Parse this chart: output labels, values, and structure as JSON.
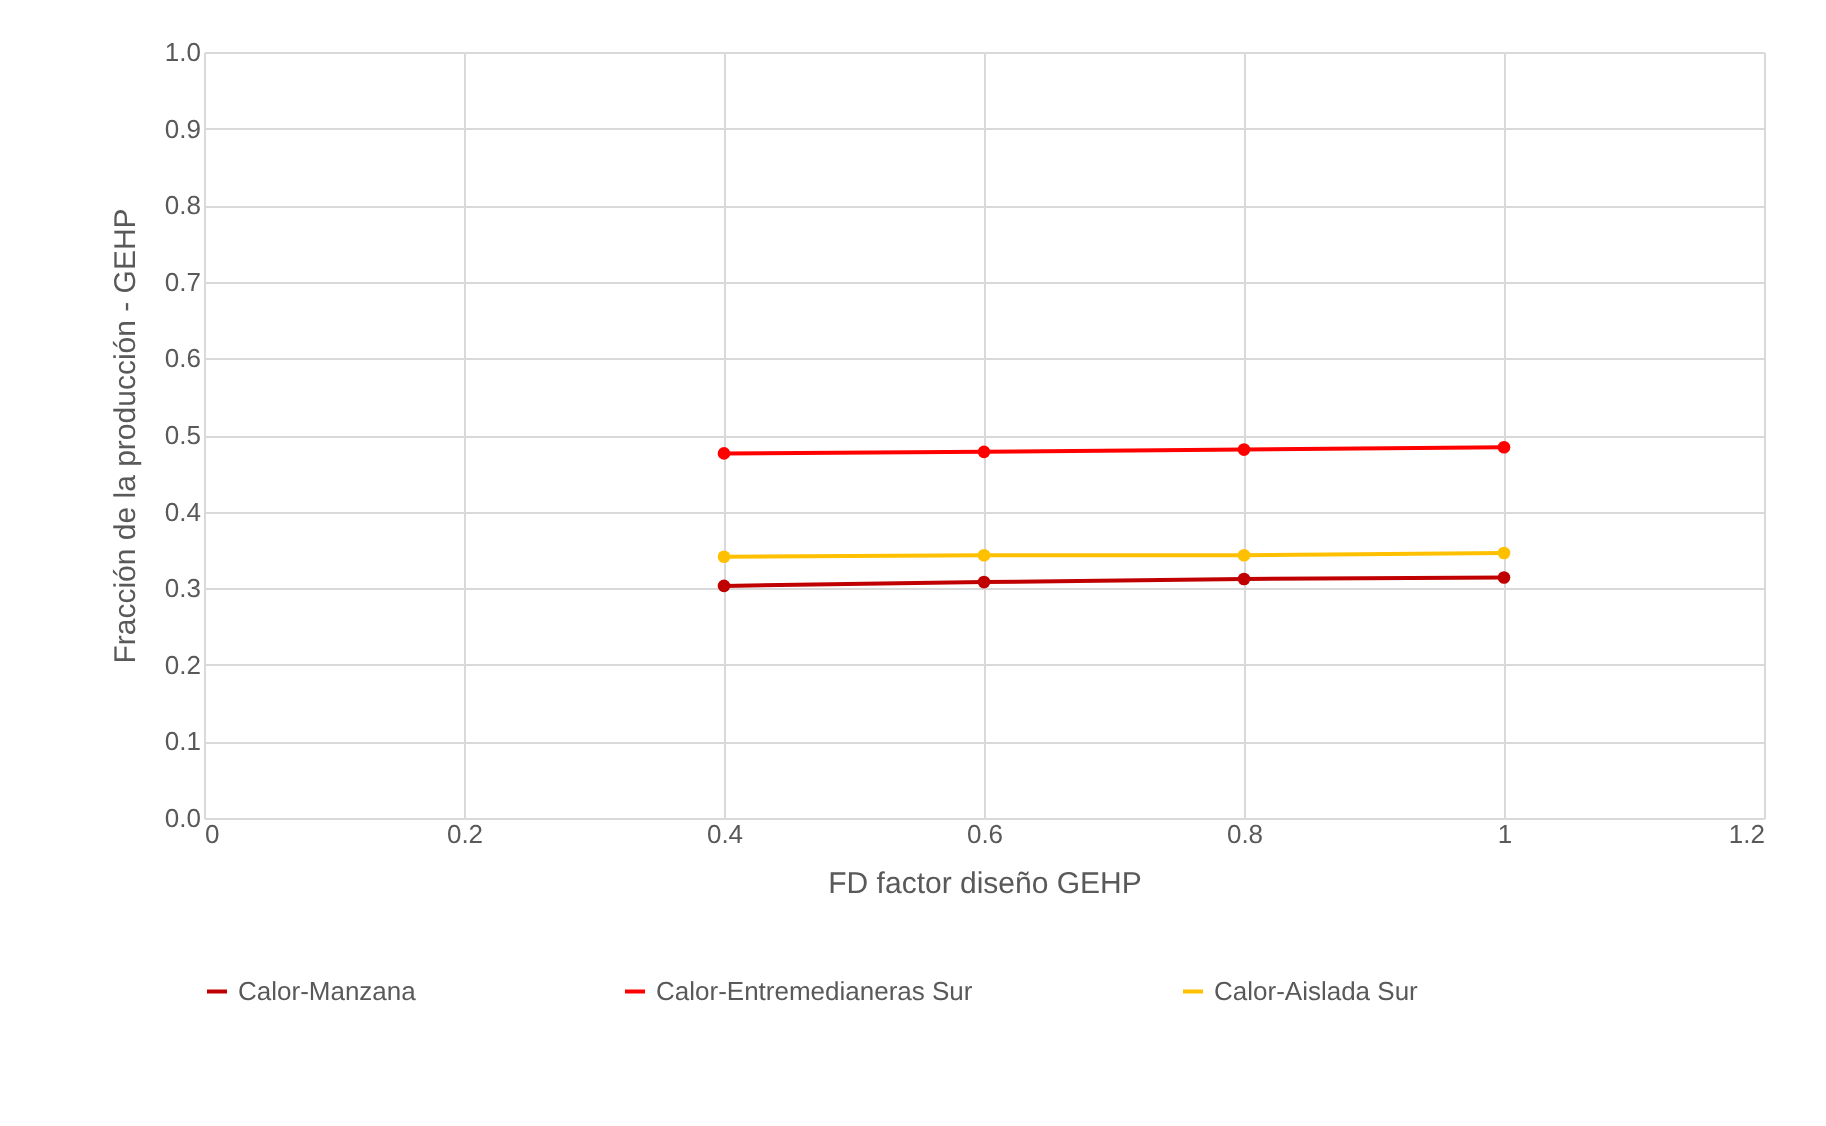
{
  "chart_data": {
    "type": "line",
    "xlabel": "FD factor diseño GEHP",
    "ylabel": "Fracción de la producción - GEHP",
    "x": [
      0.4,
      0.6,
      0.8,
      1
    ],
    "series": [
      {
        "name": "Calor-Manzana",
        "color": "#c00000",
        "values": [
          0.303,
          0.308,
          0.312,
          0.314
        ]
      },
      {
        "name": "Calor-Entremedianeras Sur",
        "color": "#ff0000",
        "values": [
          0.476,
          0.478,
          0.481,
          0.484
        ]
      },
      {
        "name": "Calor-Aislada Sur",
        "color": "#ffc000",
        "values": [
          0.341,
          0.343,
          0.343,
          0.346
        ]
      }
    ],
    "xlim": [
      0,
      1.2
    ],
    "xticks": [
      0,
      0.2,
      0.4,
      0.6,
      0.8,
      1,
      1.2
    ],
    "ylim": [
      0,
      1
    ],
    "yticks": [
      {
        "value": 0,
        "label": "0.0"
      },
      {
        "value": 0.1,
        "label": "0.1"
      },
      {
        "value": 0.2,
        "label": "0.2"
      },
      {
        "value": 0.3,
        "label": "0.3"
      },
      {
        "value": 0.4,
        "label": "0.4"
      },
      {
        "value": 0.5,
        "label": "0.5"
      },
      {
        "value": 0.6,
        "label": "0.6"
      },
      {
        "value": 0.7,
        "label": "0.7"
      },
      {
        "value": 0.8,
        "label": "0.8"
      },
      {
        "value": 0.9,
        "label": "0.9"
      },
      {
        "value": 1,
        "label": "1.0"
      }
    ],
    "grid": true,
    "legend": "bottom",
    "marker": "circle",
    "line_style": "solid"
  }
}
